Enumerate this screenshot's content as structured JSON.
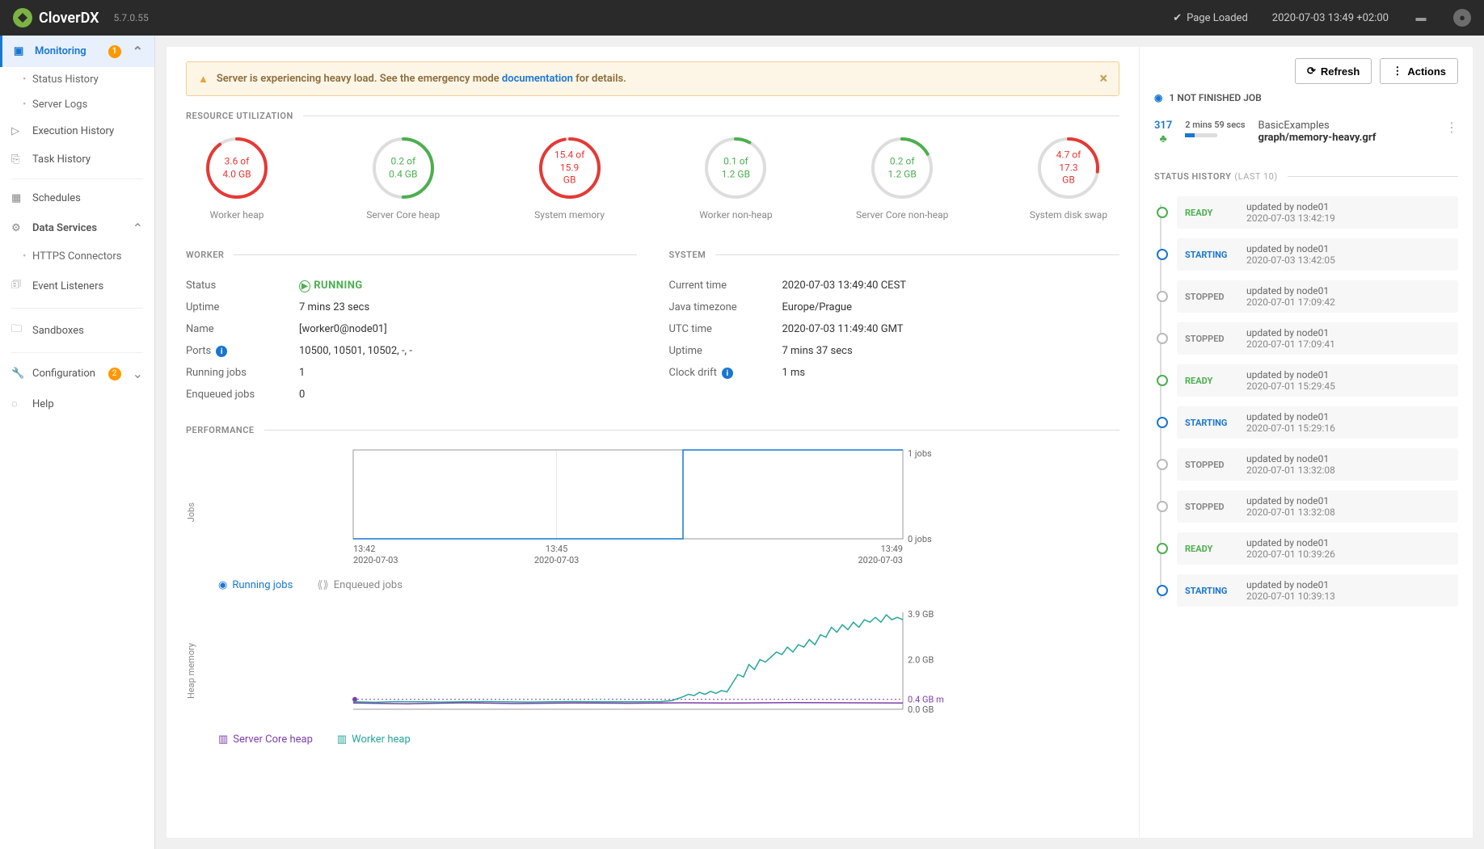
{
  "header": {
    "product": "CloverDX",
    "version": "5.7.0.55",
    "page_loaded": "Page Loaded",
    "timestamp": "2020-07-03 13:49 +02:00"
  },
  "sidebar": {
    "monitoring": {
      "label": "Monitoring",
      "badge": "1"
    },
    "status_history": "Status History",
    "server_logs": "Server Logs",
    "execution_history": "Execution History",
    "task_history": "Task History",
    "schedules": "Schedules",
    "data_services": "Data Services",
    "https_connectors": "HTTPS Connectors",
    "event_listeners": "Event Listeners",
    "sandboxes": "Sandboxes",
    "configuration": {
      "label": "Configuration",
      "badge": "2"
    },
    "help": "Help"
  },
  "alert": {
    "text_prefix": "Server is experiencing heavy load. See the emergency mode ",
    "link": "documentation",
    "text_suffix": " for details."
  },
  "sections": {
    "resource_utilization": "RESOURCE UTILIZATION",
    "worker": "WORKER",
    "system": "SYSTEM",
    "performance": "PERFORMANCE",
    "status_history_title": "STATUS HISTORY",
    "status_history_sub": "(LAST 10)"
  },
  "gauges": [
    {
      "line1": "3.6 of",
      "line2": "4.0 GB",
      "label": "Worker heap",
      "color": "#e53935",
      "pct": 0.9
    },
    {
      "line1": "0.2 of",
      "line2": "0.4 GB",
      "label": "Server Core heap",
      "color": "#4caf50",
      "pct": 0.5
    },
    {
      "line1": "15.4 of",
      "line2": "15.9 GB",
      "label": "System memory",
      "color": "#e53935",
      "pct": 0.97
    },
    {
      "line1": "0.1 of",
      "line2": "1.2 GB",
      "label": "Worker non-heap",
      "color": "#4caf50",
      "pct": 0.08
    },
    {
      "line1": "0.2 of",
      "line2": "1.2 GB",
      "label": "Server Core non-heap",
      "color": "#4caf50",
      "pct": 0.17
    },
    {
      "line1": "4.7 of",
      "line2": "17.3 GB",
      "label": "System disk swap",
      "color": "#e53935",
      "pct": 0.27
    }
  ],
  "worker": {
    "status_key": "Status",
    "status_val": "RUNNING",
    "uptime_key": "Uptime",
    "uptime_val": "7 mins 23 secs",
    "name_key": "Name",
    "name_val": "[worker0@node01]",
    "ports_key": "Ports",
    "ports_val": "10500, 10501, 10502, -, -",
    "running_key": "Running jobs",
    "running_val": "1",
    "enqueued_key": "Enqueued jobs",
    "enqueued_val": "0"
  },
  "system": {
    "current_time_key": "Current time",
    "current_time_val": "2020-07-03 13:49:40 CEST",
    "tz_key": "Java timezone",
    "tz_val": "Europe/Prague",
    "utc_key": "UTC time",
    "utc_val": "2020-07-03 11:49:40 GMT",
    "uptime_key": "Uptime",
    "uptime_val": "7 mins 37 secs",
    "drift_key": "Clock drift",
    "drift_val": "1 ms"
  },
  "jobs_chart": {
    "y_label": "Jobs",
    "y_top": "1 jobs",
    "y_bottom": "0 jobs",
    "x_ticks": [
      {
        "t": "13:42",
        "d": "2020-07-03"
      },
      {
        "t": "13:45",
        "d": "2020-07-03"
      },
      {
        "t": "13:49",
        "d": "2020-07-03"
      }
    ],
    "legend_running": "Running jobs",
    "legend_enqueued": "Enqueued jobs",
    "step_x": 0.6,
    "line_color": "#1976d2",
    "grid_color": "#999"
  },
  "heap_chart": {
    "y_label": "Heap memory",
    "y_top": "3.9 GB",
    "y_mid": "2.0 GB",
    "y_low": "0.4 GB m",
    "y_bottom": "0.0 GB",
    "legend_core": "Server Core heap",
    "legend_worker": "Worker heap",
    "worker_color": "#26a69a",
    "core_color": "#7e3fa8",
    "dashed_color": "#7e3fa8",
    "worker_points": [
      [
        0,
        0.3
      ],
      [
        0.04,
        0.28
      ],
      [
        0.08,
        0.31
      ],
      [
        0.12,
        0.3
      ],
      [
        0.16,
        0.29
      ],
      [
        0.2,
        0.3
      ],
      [
        0.24,
        0.31
      ],
      [
        0.28,
        0.3
      ],
      [
        0.32,
        0.29
      ],
      [
        0.36,
        0.3
      ],
      [
        0.4,
        0.31
      ],
      [
        0.44,
        0.3
      ],
      [
        0.48,
        0.3
      ],
      [
        0.52,
        0.3
      ],
      [
        0.56,
        0.31
      ],
      [
        0.58,
        0.35
      ],
      [
        0.6,
        0.5
      ],
      [
        0.61,
        0.6
      ],
      [
        0.62,
        0.55
      ],
      [
        0.63,
        0.68
      ],
      [
        0.64,
        0.6
      ],
      [
        0.65,
        0.72
      ],
      [
        0.66,
        0.64
      ],
      [
        0.67,
        0.75
      ],
      [
        0.68,
        0.7
      ],
      [
        0.7,
        1.4
      ],
      [
        0.71,
        1.3
      ],
      [
        0.72,
        1.8
      ],
      [
        0.73,
        1.6
      ],
      [
        0.74,
        2.0
      ],
      [
        0.75,
        1.9
      ],
      [
        0.76,
        2.1
      ],
      [
        0.77,
        2.3
      ],
      [
        0.78,
        2.2
      ],
      [
        0.79,
        2.5
      ],
      [
        0.8,
        2.3
      ],
      [
        0.81,
        2.6
      ],
      [
        0.82,
        2.5
      ],
      [
        0.83,
        2.8
      ],
      [
        0.84,
        2.6
      ],
      [
        0.85,
        3.0
      ],
      [
        0.86,
        2.9
      ],
      [
        0.87,
        3.3
      ],
      [
        0.88,
        3.1
      ],
      [
        0.89,
        3.4
      ],
      [
        0.9,
        3.2
      ],
      [
        0.91,
        3.5
      ],
      [
        0.92,
        3.3
      ],
      [
        0.93,
        3.6
      ],
      [
        0.94,
        3.5
      ],
      [
        0.95,
        3.7
      ],
      [
        0.96,
        3.5
      ],
      [
        0.97,
        3.8
      ],
      [
        0.98,
        3.6
      ],
      [
        0.99,
        3.7
      ],
      [
        1.0,
        3.6
      ]
    ],
    "core_points": [
      [
        0,
        0.25
      ],
      [
        0.1,
        0.22
      ],
      [
        0.2,
        0.26
      ],
      [
        0.3,
        0.23
      ],
      [
        0.4,
        0.25
      ],
      [
        0.5,
        0.24
      ],
      [
        0.6,
        0.26
      ],
      [
        0.7,
        0.25
      ],
      [
        0.8,
        0.27
      ],
      [
        0.9,
        0.26
      ],
      [
        1.0,
        0.25
      ]
    ],
    "y_max": 3.9
  },
  "actions": {
    "refresh": "Refresh",
    "actions": "Actions",
    "not_finished": "1 NOT FINISHED JOB"
  },
  "job": {
    "id": "317",
    "duration": "2 mins 59 secs",
    "project": "BasicExamples",
    "path": "graph/memory-heavy.grf"
  },
  "timeline": [
    {
      "status": "READY",
      "cls": "ready",
      "dot": "green",
      "by": "updated by node01",
      "ts": "2020-07-03 13:42:19"
    },
    {
      "status": "STARTING",
      "cls": "starting",
      "dot": "blue",
      "by": "updated by node01",
      "ts": "2020-07-03 13:42:05"
    },
    {
      "status": "STOPPED",
      "cls": "stopped",
      "dot": "",
      "by": "updated by node01",
      "ts": "2020-07-01 17:09:42"
    },
    {
      "status": "STOPPED",
      "cls": "stopped",
      "dot": "",
      "by": "updated by node01",
      "ts": "2020-07-01 17:09:41"
    },
    {
      "status": "READY",
      "cls": "ready",
      "dot": "green",
      "by": "updated by node01",
      "ts": "2020-07-01 15:29:45"
    },
    {
      "status": "STARTING",
      "cls": "starting",
      "dot": "blue",
      "by": "updated by node01",
      "ts": "2020-07-01 15:29:16"
    },
    {
      "status": "STOPPED",
      "cls": "stopped",
      "dot": "",
      "by": "updated by node01",
      "ts": "2020-07-01 13:32:08"
    },
    {
      "status": "STOPPED",
      "cls": "stopped",
      "dot": "",
      "by": "updated by node01",
      "ts": "2020-07-01 13:32:08"
    },
    {
      "status": "READY",
      "cls": "ready",
      "dot": "green",
      "by": "updated by node01",
      "ts": "2020-07-01 10:39:26"
    },
    {
      "status": "STARTING",
      "cls": "starting",
      "dot": "blue",
      "by": "updated by node01",
      "ts": "2020-07-01 10:39:13"
    }
  ]
}
